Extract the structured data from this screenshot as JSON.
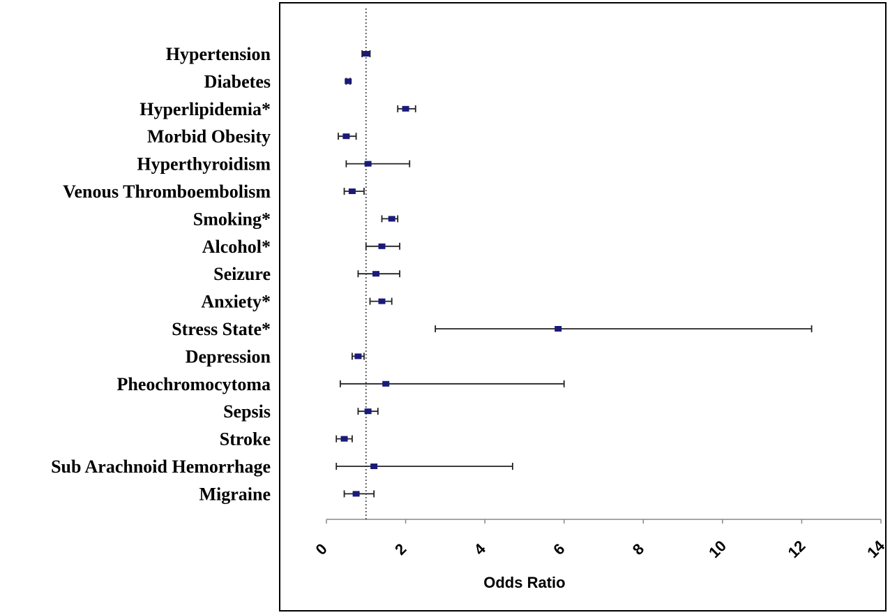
{
  "chart_data": {
    "type": "scatter",
    "subtype": "forest-plot",
    "title": "",
    "xlabel": "Odds Ratio",
    "ylabel": "",
    "xlim": [
      0,
      14
    ],
    "xticks": [
      "0",
      "2",
      "4",
      "6",
      "8",
      "10",
      "12",
      "14"
    ],
    "reference_line": 1,
    "grid": false,
    "marker_color": "#1a1a7a",
    "rows": [
      {
        "label": "Hypertension",
        "or": 1.0,
        "lower": 0.9,
        "upper": 1.1
      },
      {
        "label": "Diabetes",
        "or": 0.55,
        "lower": 0.5,
        "upper": 0.6
      },
      {
        "label": "Hyperlipidemia*",
        "or": 2.0,
        "lower": 1.8,
        "upper": 2.25
      },
      {
        "label": "Morbid Obesity",
        "or": 0.5,
        "lower": 0.3,
        "upper": 0.75
      },
      {
        "label": "Hyperthyroidism",
        "or": 1.05,
        "lower": 0.5,
        "upper": 2.1
      },
      {
        "label": "Venous Thromboembolism",
        "or": 0.65,
        "lower": 0.45,
        "upper": 0.95
      },
      {
        "label": "Smoking*",
        "or": 1.65,
        "lower": 1.4,
        "upper": 1.8
      },
      {
        "label": "Alcohol*",
        "or": 1.4,
        "lower": 1.0,
        "upper": 1.85
      },
      {
        "label": "Seizure",
        "or": 1.25,
        "lower": 0.8,
        "upper": 1.85
      },
      {
        "label": "Anxiety*",
        "or": 1.4,
        "lower": 1.1,
        "upper": 1.65
      },
      {
        "label": "Stress State*",
        "or": 5.85,
        "lower": 2.75,
        "upper": 12.25
      },
      {
        "label": "Depression",
        "or": 0.8,
        "lower": 0.65,
        "upper": 0.95
      },
      {
        "label": "Pheochromocytoma",
        "or": 1.5,
        "lower": 0.35,
        "upper": 6.0
      },
      {
        "label": "Sepsis",
        "or": 1.05,
        "lower": 0.8,
        "upper": 1.3
      },
      {
        "label": "Stroke",
        "or": 0.45,
        "lower": 0.25,
        "upper": 0.65
      },
      {
        "label": "Sub Arachnoid Hemorrhage",
        "or": 1.2,
        "lower": 0.25,
        "upper": 4.7
      },
      {
        "label": "Migraine",
        "or": 0.75,
        "lower": 0.45,
        "upper": 1.2
      }
    ]
  }
}
